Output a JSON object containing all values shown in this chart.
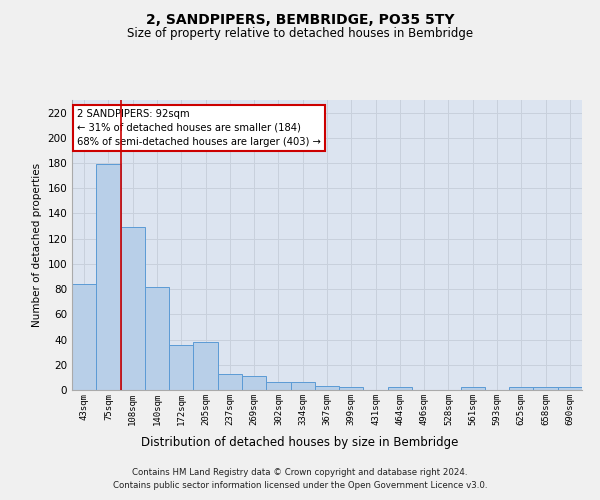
{
  "title": "2, SANDPIPERS, BEMBRIDGE, PO35 5TY",
  "subtitle": "Size of property relative to detached houses in Bembridge",
  "xlabel": "Distribution of detached houses by size in Bembridge",
  "ylabel": "Number of detached properties",
  "categories": [
    "43sqm",
    "75sqm",
    "108sqm",
    "140sqm",
    "172sqm",
    "205sqm",
    "237sqm",
    "269sqm",
    "302sqm",
    "334sqm",
    "367sqm",
    "399sqm",
    "431sqm",
    "464sqm",
    "496sqm",
    "528sqm",
    "561sqm",
    "593sqm",
    "625sqm",
    "658sqm",
    "690sqm"
  ],
  "values": [
    84,
    179,
    129,
    82,
    36,
    38,
    13,
    11,
    6,
    6,
    3,
    2,
    0,
    2,
    0,
    0,
    2,
    0,
    2,
    2,
    2
  ],
  "bar_color": "#b8cfe8",
  "bar_edge_color": "#5b9bd5",
  "vline_x": 1.5,
  "vline_color": "#cc0000",
  "annotation_text": "2 SANDPIPERS: 92sqm\n← 31% of detached houses are smaller (184)\n68% of semi-detached houses are larger (403) →",
  "annotation_box_color": "#ffffff",
  "annotation_box_edge_color": "#cc0000",
  "ylim": [
    0,
    230
  ],
  "yticks": [
    0,
    20,
    40,
    60,
    80,
    100,
    120,
    140,
    160,
    180,
    200,
    220
  ],
  "grid_color": "#c8d0dc",
  "background_color": "#dce4f0",
  "fig_background": "#f0f0f0",
  "footer_line1": "Contains HM Land Registry data © Crown copyright and database right 2024.",
  "footer_line2": "Contains public sector information licensed under the Open Government Licence v3.0."
}
